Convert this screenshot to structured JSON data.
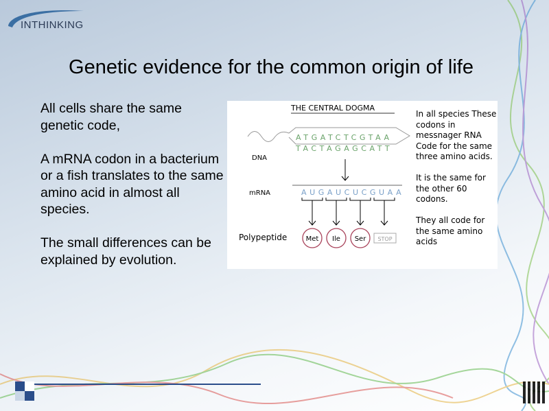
{
  "logo": {
    "text": "INTHINKING"
  },
  "title": "Genetic evidence for the common origin of life",
  "body": [
    "All cells share the same genetic code,",
    "A mRNA codon in a bacterium or a fish translates to the same amino acid in almost all species.",
    "The small differences can be explained by evolution."
  ],
  "figure": {
    "heading": "THE CENTRAL DOGMA",
    "dna_label": "DNA",
    "mrna_label": "mRNA",
    "polypeptide_label": "Polypeptide",
    "dna_top": "ATGATCTCGTAA",
    "dna_bottom": "TACTAGAGCATT",
    "mrna": "AUGAUCUCGUAA",
    "amino_acids": [
      "Met",
      "Ile",
      "Ser",
      "STOP"
    ],
    "amino_color": "#a8425a"
  },
  "side_text": [
    "In all species These codons in messnager RNA Code for the same three amino acids.",
    "It is the same for the other 60 codons.",
    "They all code for the same amino acids"
  ],
  "colors": {
    "accent": "#2a4d8a"
  }
}
